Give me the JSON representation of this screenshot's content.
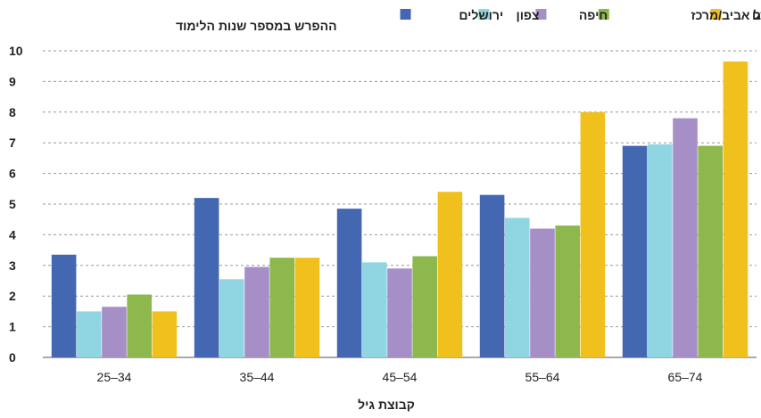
{
  "chart_data": {
    "type": "bar",
    "xlabel": "קבוצת גיל",
    "ylabel": "ההפרש במספר שנות הלימוד",
    "ylim": [
      0,
      10
    ],
    "yticks": [
      "0",
      "1",
      "2",
      "3",
      "4",
      "5",
      "6",
      "7",
      "8",
      "9",
      "10"
    ],
    "grid": "horizontal dashed",
    "legend_position": "top-right",
    "categories": [
      "25–34",
      "35–44",
      "45–54",
      "55–64",
      "65–74"
    ],
    "series": [
      {
        "name": "ירושלים",
        "color": "#4367b1",
        "values": [
          3.35,
          5.2,
          4.85,
          5.3,
          6.9
        ]
      },
      {
        "name": "צפון",
        "color": "#8fd6e2",
        "values": [
          1.5,
          2.55,
          3.1,
          4.55,
          6.95
        ]
      },
      {
        "name": "חיפה",
        "color": "#a68fc7",
        "values": [
          1.65,
          2.95,
          2.9,
          4.2,
          7.8
        ]
      },
      {
        "name": "תל אביב/מרכז",
        "color": "#8cb84d",
        "values": [
          2.05,
          3.25,
          3.3,
          4.3,
          6.9
        ]
      },
      {
        "name": "דרום",
        "color": "#f0c01c",
        "values": [
          1.5,
          3.25,
          5.4,
          8.0,
          9.65
        ]
      }
    ]
  }
}
